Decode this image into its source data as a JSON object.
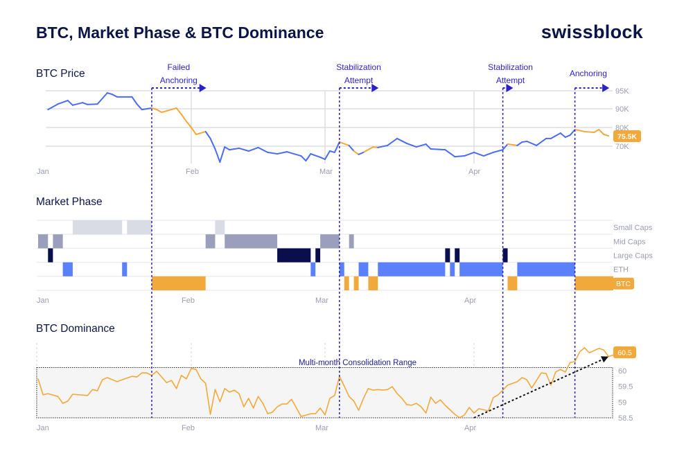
{
  "header": {
    "title": "BTC, Market Phase & BTC Dominance",
    "logo_text": "swissblock"
  },
  "colors": {
    "navy": "#0b1447",
    "annotation": "#2a1fc9",
    "price_line": "#4a6cf2",
    "btc": "#f2a93b",
    "small_caps": "#d9dce5",
    "mid_caps": "#9c9fbb",
    "large_caps": "#0a0e4d",
    "eth": "#5b80fb",
    "grid": "#dcdde3"
  },
  "months": [
    "Jan",
    "Feb",
    "Mar",
    "Apr"
  ],
  "annotations": [
    {
      "lines": [
        "Failed",
        "Anchoring"
      ],
      "date": "01-24",
      "arrow_to": "02-04"
    },
    {
      "lines": [
        "Stabilization",
        "Attempt"
      ],
      "date": "03-04",
      "arrow_to": "03-12"
    },
    {
      "lines": [
        "Stabilization",
        "Attempt"
      ],
      "date": "04-07",
      "arrow_to": "04-09"
    },
    {
      "lines": [
        "Anchoring"
      ],
      "date": "04-22",
      "arrow_to": "04-29"
    }
  ],
  "chart_data": [
    {
      "type": "line",
      "title": "BTC Price",
      "x_ticks": [
        "Jan",
        "Feb",
        "Mar",
        "Apr"
      ],
      "y_ticks": [
        {
          "value": 95,
          "label": "95K"
        },
        {
          "value": 90,
          "label": "90K"
        },
        {
          "value": 80,
          "label": "80K"
        },
        {
          "value": 70,
          "label": "70K"
        }
      ],
      "unit": "K USD",
      "color_rule": "orange when market phase is BTC, blue otherwise",
      "last_value_label": "75.5K",
      "grid": true,
      "points": [
        [
          "01-03",
          89.6
        ],
        [
          "01-05",
          91.3
        ],
        [
          "01-07",
          92.3
        ],
        [
          "01-08",
          91.0
        ],
        [
          "01-10",
          91.7
        ],
        [
          "01-11",
          91.2
        ],
        [
          "01-13",
          91.3
        ],
        [
          "01-15",
          94.4
        ],
        [
          "01-16",
          94.0
        ],
        [
          "01-17",
          93.3
        ],
        [
          "01-20",
          93.3
        ],
        [
          "01-21",
          91.3
        ],
        [
          "01-22",
          89.6
        ],
        [
          "01-24",
          90.2
        ],
        [
          "01-25",
          89.6
        ],
        [
          "01-26",
          88.1
        ],
        [
          "01-28",
          89.6
        ],
        [
          "01-29",
          90.2
        ],
        [
          "01-30",
          87.0
        ],
        [
          "01-31",
          83.3
        ],
        [
          "02-01",
          80.0
        ],
        [
          "02-02",
          76.3
        ],
        [
          "02-04",
          77.8
        ],
        [
          "02-05",
          74.1
        ],
        [
          "02-06",
          68.5
        ],
        [
          "02-07",
          61.5
        ],
        [
          "02-08",
          69.6
        ],
        [
          "02-09",
          68.1
        ],
        [
          "02-11",
          68.9
        ],
        [
          "02-13",
          67.4
        ],
        [
          "02-15",
          69.3
        ],
        [
          "02-17",
          66.7
        ],
        [
          "02-19",
          65.9
        ],
        [
          "02-21",
          67.0
        ],
        [
          "02-24",
          64.8
        ],
        [
          "02-25",
          62.2
        ],
        [
          "02-26",
          65.9
        ],
        [
          "02-28",
          64.1
        ],
        [
          "03-01",
          63.0
        ],
        [
          "03-02",
          67.4
        ],
        [
          "03-03",
          66.7
        ],
        [
          "03-04",
          72.2
        ],
        [
          "03-06",
          70.4
        ],
        [
          "03-07",
          67.4
        ],
        [
          "03-08",
          65.6
        ],
        [
          "03-09",
          66.7
        ],
        [
          "03-11",
          69.6
        ],
        [
          "03-12",
          69.3
        ],
        [
          "03-14",
          70.4
        ],
        [
          "03-16",
          74.1
        ],
        [
          "03-18",
          71.5
        ],
        [
          "03-20",
          69.6
        ],
        [
          "03-22",
          71.1
        ],
        [
          "03-23",
          68.5
        ],
        [
          "03-26",
          68.1
        ],
        [
          "03-28",
          64.4
        ],
        [
          "03-30",
          64.8
        ],
        [
          "04-01",
          66.7
        ],
        [
          "04-03",
          64.8
        ],
        [
          "04-05",
          66.7
        ],
        [
          "04-07",
          68.1
        ],
        [
          "04-08",
          71.1
        ],
        [
          "04-10",
          70.4
        ],
        [
          "04-11",
          72.2
        ],
        [
          "04-12",
          72.6
        ],
        [
          "04-14",
          70.4
        ],
        [
          "04-16",
          74.1
        ],
        [
          "04-17",
          74.1
        ],
        [
          "04-19",
          77.0
        ],
        [
          "04-20",
          74.8
        ],
        [
          "04-21",
          75.9
        ],
        [
          "04-22",
          78.9
        ],
        [
          "04-24",
          77.8
        ],
        [
          "04-26",
          77.4
        ],
        [
          "04-27",
          78.9
        ],
        [
          "04-28",
          76.3
        ],
        [
          "04-29",
          75.5
        ]
      ]
    },
    {
      "type": "heatmap",
      "title": "Market Phase",
      "x_ticks": [
        "Jan",
        "Feb",
        "Mar",
        "Apr"
      ],
      "categories": [
        "Small Caps",
        "Mid Caps",
        "Large Caps",
        "ETH",
        "BTC"
      ],
      "current_phase": "BTC",
      "segments": [
        {
          "start": "01-01",
          "end": "01-03",
          "phase": "Mid Caps"
        },
        {
          "start": "01-03",
          "end": "01-04",
          "phase": "Large Caps"
        },
        {
          "start": "01-04",
          "end": "01-06",
          "phase": "Mid Caps"
        },
        {
          "start": "01-06",
          "end": "01-08",
          "phase": "ETH"
        },
        {
          "start": "01-08",
          "end": "01-18",
          "phase": "Small Caps"
        },
        {
          "start": "01-18",
          "end": "01-19",
          "phase": "ETH"
        },
        {
          "start": "01-19",
          "end": "01-24",
          "phase": "Small Caps"
        },
        {
          "start": "01-24",
          "end": "02-04",
          "phase": "BTC"
        },
        {
          "start": "02-04",
          "end": "02-06",
          "phase": "Mid Caps"
        },
        {
          "start": "02-06",
          "end": "02-08",
          "phase": "Small Caps"
        },
        {
          "start": "02-08",
          "end": "02-19",
          "phase": "Mid Caps"
        },
        {
          "start": "02-19",
          "end": "02-26",
          "phase": "Large Caps"
        },
        {
          "start": "02-26",
          "end": "02-27",
          "phase": "ETH"
        },
        {
          "start": "02-27",
          "end": "02-28",
          "phase": "Large Caps"
        },
        {
          "start": "02-28",
          "end": "03-04",
          "phase": "Mid Caps"
        },
        {
          "start": "03-04",
          "end": "03-05",
          "phase": "ETH"
        },
        {
          "start": "03-05",
          "end": "03-06",
          "phase": "BTC"
        },
        {
          "start": "03-06",
          "end": "03-07",
          "phase": "Mid Caps"
        },
        {
          "start": "03-07",
          "end": "03-08",
          "phase": "BTC"
        },
        {
          "start": "03-08",
          "end": "03-10",
          "phase": "ETH"
        },
        {
          "start": "03-10",
          "end": "03-12",
          "phase": "BTC"
        },
        {
          "start": "03-12",
          "end": "03-26",
          "phase": "ETH"
        },
        {
          "start": "03-26",
          "end": "03-27",
          "phase": "Large Caps"
        },
        {
          "start": "03-27",
          "end": "03-28",
          "phase": "ETH"
        },
        {
          "start": "03-28",
          "end": "03-29",
          "phase": "Large Caps"
        },
        {
          "start": "03-29",
          "end": "04-07",
          "phase": "ETH"
        },
        {
          "start": "04-07",
          "end": "04-08",
          "phase": "Large Caps"
        },
        {
          "start": "04-08",
          "end": "04-10",
          "phase": "BTC"
        },
        {
          "start": "04-10",
          "end": "04-22",
          "phase": "ETH"
        },
        {
          "start": "04-22",
          "end": "04-30",
          "phase": "BTC"
        }
      ]
    },
    {
      "type": "line",
      "title": "BTC Dominance",
      "x_ticks": [
        "Jan",
        "Feb",
        "Mar",
        "Apr"
      ],
      "y_ticks": [
        60,
        59.5,
        59,
        58.5
      ],
      "ylim": [
        58.5,
        60.8
      ],
      "last_value_label": "60.5",
      "range_annotation": {
        "label": "Multi-month Consolidation Range",
        "low": 58.5,
        "high": 60.1
      },
      "trend_arrow": {
        "from": [
          "04-01",
          58.5
        ],
        "to": [
          "04-29",
          60.45
        ]
      },
      "points": [
        [
          "01-01",
          59.74
        ],
        [
          "01-02",
          59.23
        ],
        [
          "01-03",
          59.27
        ],
        [
          "01-05",
          59.18
        ],
        [
          "01-06",
          58.96
        ],
        [
          "01-07",
          59.03
        ],
        [
          "01-08",
          59.25
        ],
        [
          "01-11",
          59.21
        ],
        [
          "01-12",
          59.4
        ],
        [
          "01-13",
          59.36
        ],
        [
          "01-14",
          59.71
        ],
        [
          "01-15",
          59.78
        ],
        [
          "01-17",
          59.65
        ],
        [
          "01-18",
          59.71
        ],
        [
          "01-20",
          59.82
        ],
        [
          "01-21",
          59.8
        ],
        [
          "01-22",
          59.93
        ],
        [
          "01-23",
          59.93
        ],
        [
          "01-24",
          59.85
        ],
        [
          "01-25",
          59.98
        ],
        [
          "01-27",
          59.62
        ],
        [
          "01-28",
          59.69
        ],
        [
          "01-29",
          59.43
        ],
        [
          "01-30",
          59.85
        ],
        [
          "01-31",
          59.74
        ],
        [
          "02-01",
          60.07
        ],
        [
          "02-02",
          60.04
        ],
        [
          "02-03",
          59.74
        ],
        [
          "02-04",
          59.6
        ],
        [
          "02-05",
          58.61
        ],
        [
          "02-06",
          59.4
        ],
        [
          "02-07",
          59.01
        ],
        [
          "02-08",
          59.43
        ],
        [
          "02-09",
          59.32
        ],
        [
          "02-10",
          59.38
        ],
        [
          "02-11",
          59.27
        ],
        [
          "02-12",
          58.85
        ],
        [
          "02-13",
          59.12
        ],
        [
          "02-14",
          58.81
        ],
        [
          "02-15",
          59.18
        ],
        [
          "02-16",
          58.96
        ],
        [
          "02-17",
          58.63
        ],
        [
          "02-18",
          58.68
        ],
        [
          "02-19",
          58.85
        ],
        [
          "02-20",
          58.94
        ],
        [
          "02-21",
          58.94
        ],
        [
          "02-22",
          59.09
        ],
        [
          "02-24",
          58.54
        ],
        [
          "02-26",
          58.63
        ],
        [
          "02-27",
          58.63
        ],
        [
          "02-28",
          58.81
        ],
        [
          "03-01",
          58.59
        ],
        [
          "03-02",
          59.12
        ],
        [
          "03-03",
          59.21
        ],
        [
          "03-04",
          59.82
        ],
        [
          "03-05",
          59.51
        ],
        [
          "03-06",
          59.18
        ],
        [
          "03-07",
          59.03
        ],
        [
          "03-08",
          58.74
        ],
        [
          "03-09",
          59.12
        ],
        [
          "03-10",
          59.43
        ],
        [
          "03-11",
          59.38
        ],
        [
          "03-12",
          59.4
        ],
        [
          "03-13",
          59.38
        ],
        [
          "03-14",
          59.4
        ],
        [
          "03-15",
          59.49
        ],
        [
          "03-16",
          59.27
        ],
        [
          "03-17",
          59.12
        ],
        [
          "03-18",
          58.92
        ],
        [
          "03-19",
          58.9
        ],
        [
          "03-20",
          58.96
        ],
        [
          "03-21",
          58.85
        ],
        [
          "03-22",
          58.65
        ],
        [
          "03-23",
          59.16
        ],
        [
          "03-24",
          58.96
        ],
        [
          "03-25",
          59.07
        ],
        [
          "03-26",
          58.9
        ],
        [
          "03-28",
          58.61
        ],
        [
          "03-29",
          58.5
        ],
        [
          "03-30",
          58.59
        ],
        [
          "03-31",
          58.83
        ],
        [
          "04-01",
          58.65
        ],
        [
          "04-02",
          58.79
        ],
        [
          "04-04",
          58.72
        ],
        [
          "04-05",
          59.14
        ],
        [
          "04-06",
          59.23
        ],
        [
          "04-07",
          59.38
        ],
        [
          "04-08",
          59.54
        ],
        [
          "04-10",
          59.65
        ],
        [
          "04-11",
          59.78
        ],
        [
          "04-12",
          59.71
        ],
        [
          "04-13",
          59.45
        ],
        [
          "04-15",
          59.93
        ],
        [
          "04-16",
          59.91
        ],
        [
          "04-17",
          59.54
        ],
        [
          "04-18",
          59.96
        ],
        [
          "04-19",
          60.04
        ],
        [
          "04-20",
          59.96
        ],
        [
          "04-21",
          60.26
        ],
        [
          "04-22",
          60.29
        ],
        [
          "04-23",
          60.6
        ],
        [
          "04-24",
          60.73
        ],
        [
          "04-25",
          60.57
        ],
        [
          "04-27",
          60.71
        ],
        [
          "04-28",
          60.66
        ],
        [
          "04-29",
          60.45
        ],
        [
          "04-30",
          60.5
        ]
      ]
    }
  ]
}
